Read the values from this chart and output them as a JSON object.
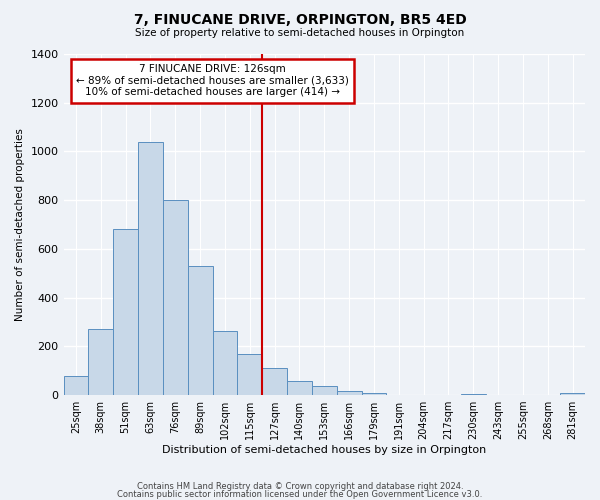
{
  "title": "7, FINUCANE DRIVE, ORPINGTON, BR5 4ED",
  "subtitle": "Size of property relative to semi-detached houses in Orpington",
  "xlabel": "Distribution of semi-detached houses by size in Orpington",
  "ylabel": "Number of semi-detached properties",
  "bar_color": "#c8d8e8",
  "bar_edge_color": "#5a8fc0",
  "background_color": "#eef2f7",
  "grid_color": "#ffffff",
  "categories": [
    "25sqm",
    "38sqm",
    "51sqm",
    "63sqm",
    "76sqm",
    "89sqm",
    "102sqm",
    "115sqm",
    "127sqm",
    "140sqm",
    "153sqm",
    "166sqm",
    "179sqm",
    "191sqm",
    "204sqm",
    "217sqm",
    "230sqm",
    "243sqm",
    "255sqm",
    "268sqm",
    "281sqm"
  ],
  "values": [
    80,
    270,
    680,
    1040,
    800,
    530,
    265,
    170,
    110,
    58,
    38,
    17,
    8,
    0,
    0,
    0,
    5,
    0,
    0,
    0,
    8
  ],
  "marker_label": "7 FINUCANE DRIVE: 126sqm",
  "annotation_line1": "← 89% of semi-detached houses are smaller (3,633)",
  "annotation_line2": "10% of semi-detached houses are larger (414) →",
  "ylim": [
    0,
    1400
  ],
  "yticks": [
    0,
    200,
    400,
    600,
    800,
    1000,
    1200,
    1400
  ],
  "footer_line1": "Contains HM Land Registry data © Crown copyright and database right 2024.",
  "footer_line2": "Contains public sector information licensed under the Open Government Licence v3.0.",
  "vline_color": "#cc0000",
  "vline_x": 7.5,
  "box_edge_color": "#cc0000"
}
